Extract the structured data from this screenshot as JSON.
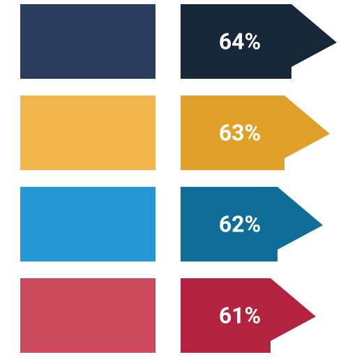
{
  "chart_data": {
    "type": "arrow",
    "values": [
      64,
      63,
      62,
      61
    ],
    "value_labels": [
      "64%",
      "63%",
      "62%",
      "61%"
    ],
    "colors": [
      "#16273a",
      "#e0a02a",
      "#0f6d9a",
      "#b3233f"
    ],
    "block_colors": [
      "#2a3d5c",
      "#f2b64c",
      "#2596d6",
      "#cc4a5c"
    ]
  }
}
